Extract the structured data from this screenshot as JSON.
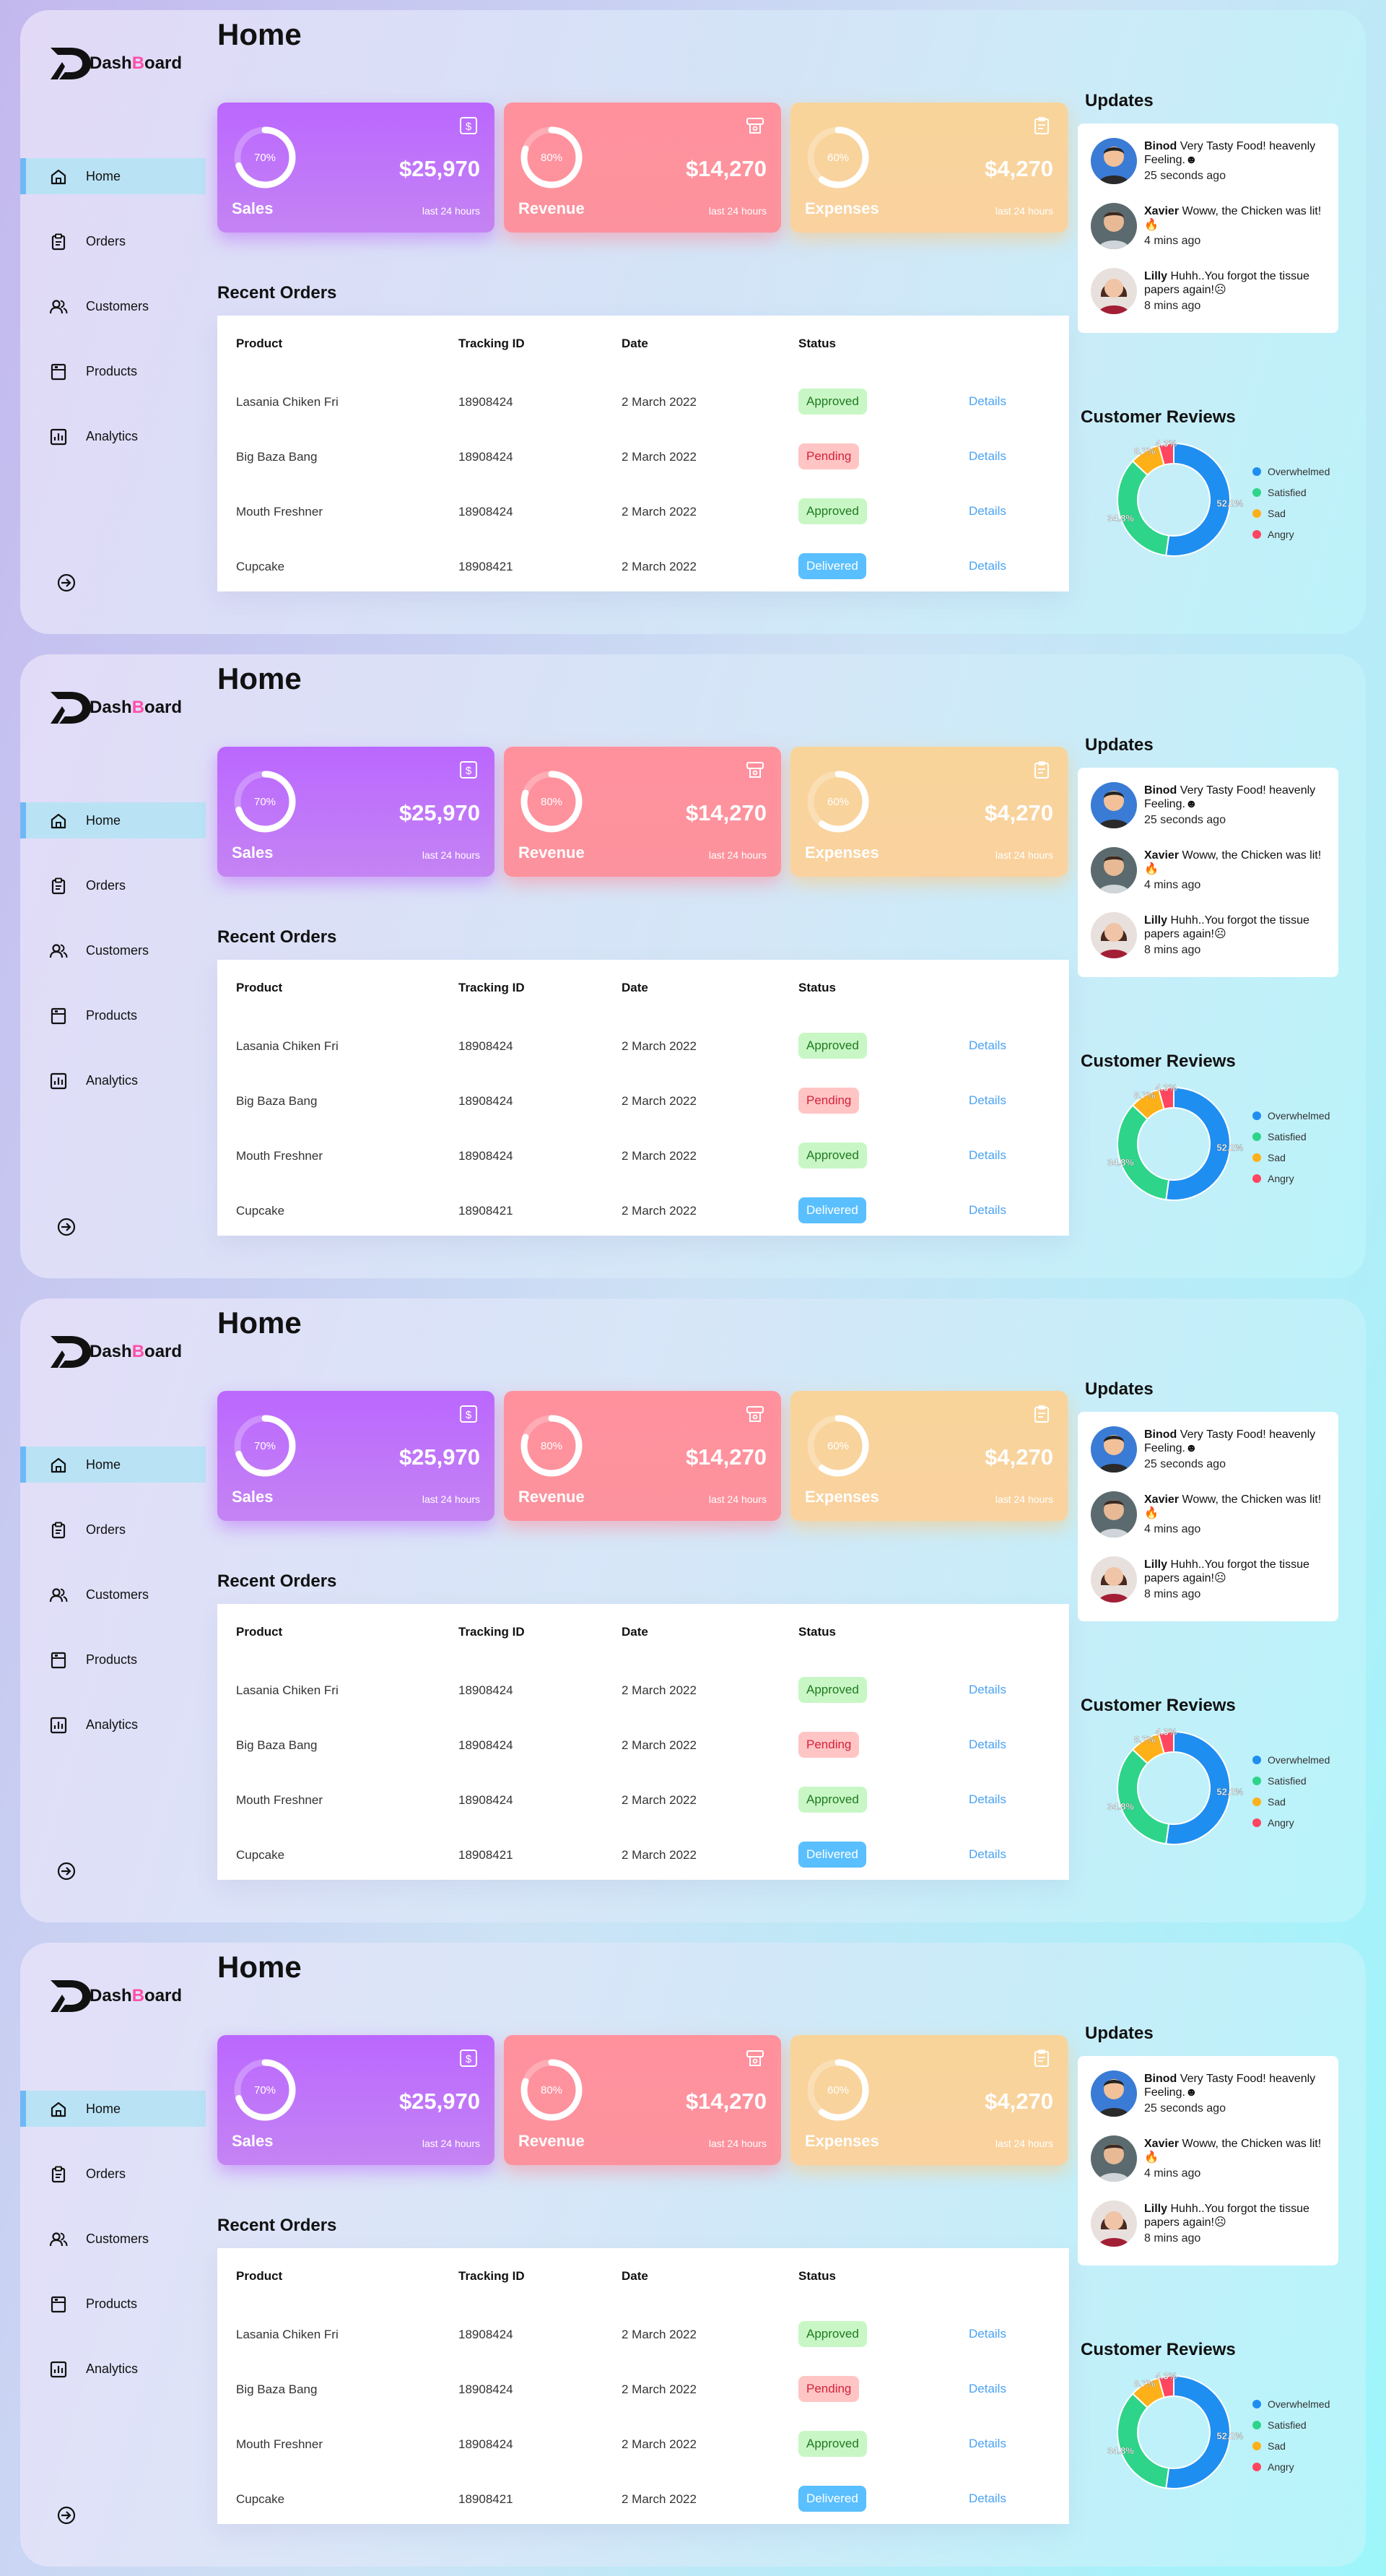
{
  "brand": {
    "part1": "Dash",
    "part2": "B",
    "part3": "oard"
  },
  "sidebar": {
    "items": [
      {
        "label": "Home",
        "icon": "home-icon",
        "active": true
      },
      {
        "label": "Orders",
        "icon": "clipboard-icon",
        "active": false
      },
      {
        "label": "Customers",
        "icon": "users-icon",
        "active": false
      },
      {
        "label": "Products",
        "icon": "archive-icon",
        "active": false
      },
      {
        "label": "Analytics",
        "icon": "bar-chart-icon",
        "active": false
      }
    ],
    "signout_icon": "sign-out-icon"
  },
  "page_title": "Home",
  "cards": [
    {
      "label": "Sales",
      "amount": "$25,970",
      "period": "last 24 hours",
      "percent_text": "70%",
      "percent": 70,
      "icon": "dollar-icon",
      "color": "#bb67ff"
    },
    {
      "label": "Revenue",
      "amount": "$14,270",
      "period": "last 24 hours",
      "percent_text": "80%",
      "percent": 80,
      "icon": "money-icon",
      "color": "#ff919d"
    },
    {
      "label": "Expenses",
      "amount": "$4,270",
      "period": "last 24 hours",
      "percent_text": "60%",
      "percent": 60,
      "icon": "clipboard-icon",
      "color": "#f8d49a"
    }
  ],
  "orders": {
    "title": "Recent Orders",
    "headers": [
      "Product",
      "Tracking ID",
      "Date",
      "Status"
    ],
    "rows": [
      {
        "product": "Lasania Chiken Fri",
        "tracking": "18908424",
        "date": "2 March 2022",
        "status": "Approved",
        "details": "Details"
      },
      {
        "product": "Big Baza Bang",
        "tracking": "18908424",
        "date": "2 March 2022",
        "status": "Pending",
        "details": "Details"
      },
      {
        "product": "Mouth Freshner",
        "tracking": "18908424",
        "date": "2 March 2022",
        "status": "Approved",
        "details": "Details"
      },
      {
        "product": "Cupcake",
        "tracking": "18908421",
        "date": "2 March 2022",
        "status": "Delivered",
        "details": "Details"
      }
    ]
  },
  "updates": {
    "title": "Updates",
    "items": [
      {
        "name": "Binod",
        "text": "Very Tasty Food! heavenly Feeling.",
        "emoji": "☻",
        "time": "25 seconds ago"
      },
      {
        "name": "Xavier",
        "text": "Woww, the Chicken was lit!",
        "emoji": "🔥",
        "time": "4 mins ago"
      },
      {
        "name": "Lilly",
        "text": "Huhh..You forgot the tissue papers again!",
        "emoji": "☹",
        "time": "8 mins ago"
      }
    ]
  },
  "reviews": {
    "title": "Customer Reviews",
    "legend": [
      {
        "label": "Overwhelmed",
        "color": "#1f8ef1"
      },
      {
        "label": "Satisfied",
        "color": "#2ed48a"
      },
      {
        "label": "Sad",
        "color": "#feb019"
      },
      {
        "label": "Angry",
        "color": "#ff4560"
      }
    ],
    "data_labels": [
      "52.2%",
      "34.8%",
      "8.7%",
      "4.3%"
    ]
  },
  "chart_data": {
    "type": "pie",
    "title": "Customer Reviews",
    "categories": [
      "Overwhelmed",
      "Satisfied",
      "Sad",
      "Angry"
    ],
    "values": [
      52.2,
      34.8,
      8.7,
      4.3
    ],
    "colors": [
      "#1f8ef1",
      "#2ed48a",
      "#feb019",
      "#ff4560"
    ],
    "donut": true
  }
}
